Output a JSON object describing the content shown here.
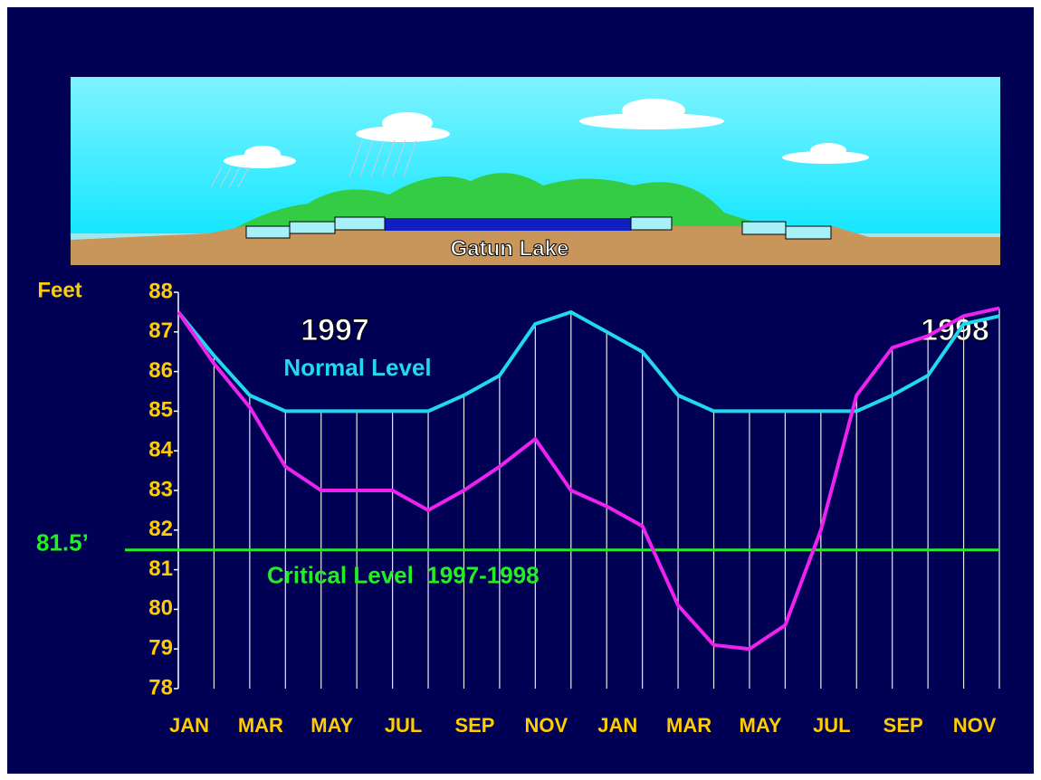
{
  "chart_data": {
    "type": "line",
    "illustration_label": "Gatun Lake",
    "y_label": "Feet",
    "annotations": [
      "1997",
      "1998"
    ],
    "categories": [
      "JAN",
      null,
      "MAR",
      null,
      "MAY",
      null,
      "JUL",
      null,
      "SEP",
      null,
      "NOV",
      null,
      "JAN",
      null,
      "MAR",
      null,
      "MAY",
      null,
      "JUL",
      null,
      "SEP",
      null,
      "NOV",
      null
    ],
    "series": [
      {
        "name": "Normal Level",
        "color": "#22d8ee",
        "values": [
          87.5,
          86.4,
          85.4,
          85.0,
          85.0,
          85.0,
          85.0,
          85.0,
          85.4,
          85.9,
          87.2,
          87.5,
          87.0,
          86.5,
          85.4,
          85.0,
          85.0,
          85.0,
          85.0,
          85.0,
          85.4,
          85.9,
          87.2,
          87.4
        ]
      },
      {
        "color": "#ee22ee",
        "values": [
          87.5,
          86.2,
          85.1,
          83.6,
          83.0,
          83.0,
          83.0,
          82.5,
          83.0,
          83.6,
          84.3,
          83.0,
          82.6,
          82.1,
          80.1,
          79.1,
          79.0,
          79.6,
          82.0,
          85.4,
          86.6,
          86.9,
          87.4,
          87.6
        ]
      }
    ],
    "reference_lines": [
      {
        "value": 81.5,
        "label": "81.5’",
        "annotation": "Critical Level  1997-1998",
        "color": "#22ee22"
      }
    ],
    "ylim": [
      78,
      88
    ],
    "yticks": [
      78,
      79,
      80,
      81,
      82,
      83,
      84,
      85,
      86,
      87,
      88
    ]
  }
}
